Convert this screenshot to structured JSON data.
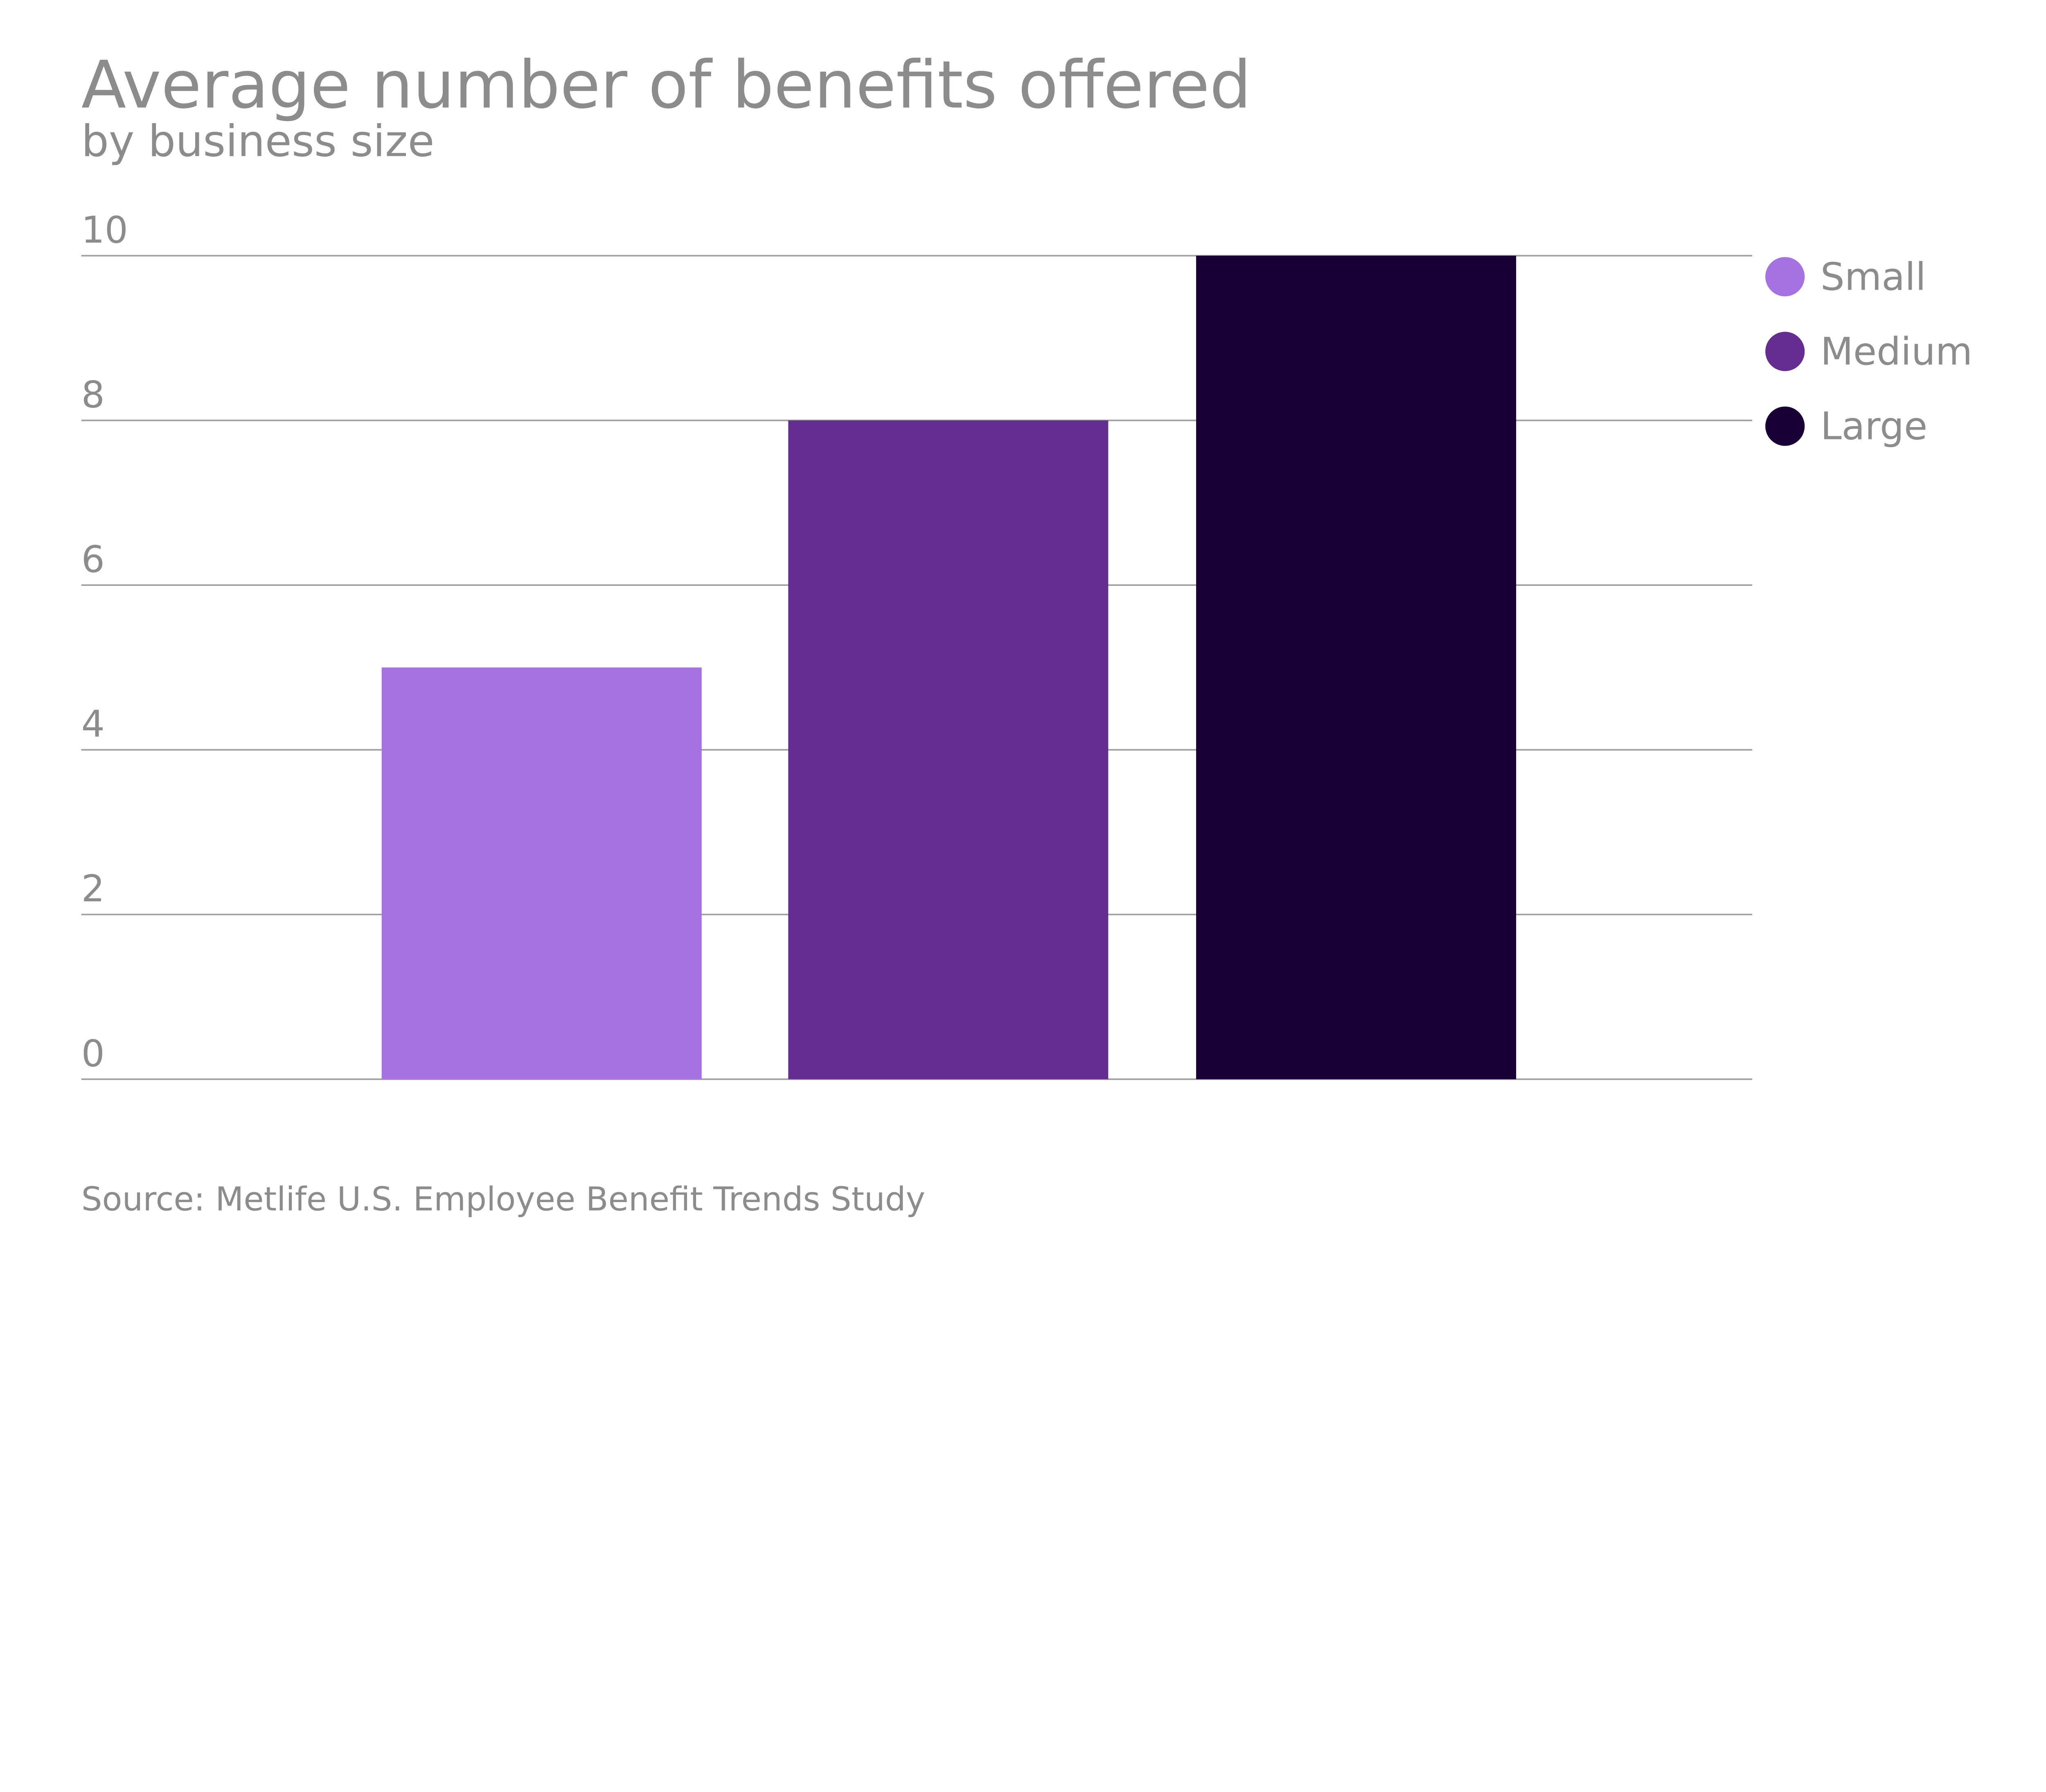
{
  "chart_data": {
    "type": "bar",
    "title": "Average number of benefits offered",
    "subtitle": "by business size",
    "source": "Source: Metlife U.S. Employee Benefit Trends Study",
    "categories": [
      "Small",
      "Medium",
      "Large"
    ],
    "values": [
      5,
      8,
      10
    ],
    "colors": [
      "#a572e0",
      "#642d8f",
      "#170036"
    ],
    "ylim": [
      0,
      10
    ],
    "yticks": [
      "0",
      "2",
      "4",
      "6",
      "8",
      "10"
    ],
    "xlabel": "",
    "ylabel": "",
    "grid": true,
    "legend": {
      "placement": "top-right",
      "items": [
        "Small",
        "Medium",
        "Large"
      ]
    },
    "text_color": "#8c8c8c",
    "grid_color": "#a0a0a0"
  }
}
